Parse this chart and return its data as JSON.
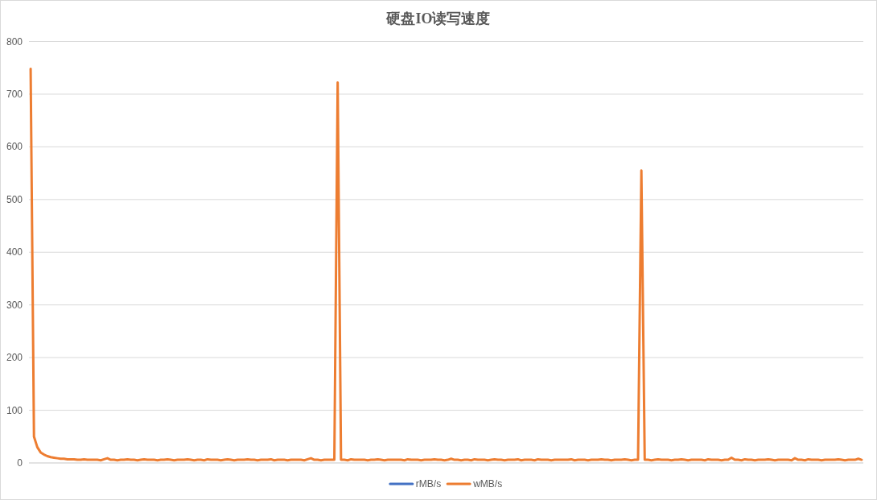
{
  "chart_data": {
    "type": "line",
    "title": "硬盘IO读写速度",
    "categories": [
      null,
      null,
      null,
      null,
      null,
      null,
      null,
      null,
      null,
      null,
      null,
      null,
      null,
      null,
      null,
      null,
      null,
      null,
      null,
      null,
      null,
      null,
      null,
      null,
      null,
      null,
      null,
      null,
      null,
      null,
      null,
      null,
      null,
      null,
      null,
      null,
      null,
      null,
      null,
      null,
      null,
      null,
      null,
      null,
      null,
      null,
      null,
      null,
      null,
      null,
      null,
      null,
      null,
      null,
      null,
      null,
      null,
      null,
      null,
      null,
      null,
      null,
      null,
      null,
      null,
      null,
      null,
      null,
      null,
      null,
      null,
      null,
      null,
      null,
      null,
      null,
      null,
      null,
      null,
      null,
      null,
      null,
      null,
      null,
      null,
      null,
      null,
      null,
      null,
      null,
      null,
      null,
      null,
      null,
      null,
      null,
      null,
      null,
      null,
      null,
      null,
      null,
      null,
      null,
      null,
      null,
      null,
      null,
      null,
      null,
      null,
      null,
      null,
      null,
      null,
      null,
      null,
      null,
      null,
      null,
      null,
      null,
      null,
      null,
      null,
      null,
      null,
      null,
      null,
      null,
      null,
      null,
      null,
      null,
      null,
      null,
      null,
      null,
      null,
      null,
      null,
      null,
      null,
      null,
      null,
      null,
      null,
      null,
      null,
      null,
      null,
      null,
      null,
      null,
      null,
      null,
      null,
      null,
      null,
      null,
      null,
      null,
      null,
      null,
      null,
      null,
      null,
      null,
      null,
      null,
      null,
      null,
      null,
      null,
      null,
      null,
      null,
      null,
      null,
      null,
      null,
      null,
      null,
      null,
      null,
      null,
      null,
      null,
      null,
      null,
      null,
      null,
      null,
      null,
      null,
      null,
      null,
      null,
      null,
      null,
      null,
      null,
      null,
      null,
      null,
      null,
      null,
      null,
      null,
      null,
      null,
      null,
      null,
      null,
      null,
      null,
      null,
      null,
      null,
      null,
      null,
      null,
      null,
      null,
      null,
      null,
      null,
      null,
      null,
      null,
      null,
      null,
      null,
      null,
      null,
      null,
      null,
      null,
      null,
      null,
      null,
      null,
      null,
      null,
      null,
      null,
      null,
      null,
      null,
      null
    ],
    "series": [
      {
        "name": "rMB/s",
        "color": "#4472c4",
        "values": [
          null,
          null,
          null,
          null,
          null,
          null,
          null,
          null,
          null,
          null,
          null,
          null,
          null,
          null,
          null,
          null,
          null,
          null,
          null,
          null,
          null,
          null,
          null,
          null,
          null,
          null,
          null,
          null,
          null,
          null,
          null,
          null,
          null,
          null,
          null,
          null,
          null,
          null,
          null,
          null,
          null,
          null,
          null,
          null,
          null,
          null,
          null,
          null,
          null,
          null,
          null,
          null,
          null,
          null,
          null,
          null,
          null,
          null,
          null,
          null,
          null,
          null,
          null,
          null,
          null,
          null,
          null,
          null,
          null,
          null,
          null,
          null,
          null,
          null,
          null,
          null,
          null,
          null,
          null,
          null,
          null,
          null,
          null,
          null,
          null,
          null,
          null,
          null,
          null,
          null,
          null,
          null,
          null,
          null,
          null,
          null,
          null,
          null,
          null,
          null,
          null,
          null,
          null,
          null,
          null,
          null,
          null,
          null,
          null,
          null,
          null,
          null,
          null,
          null,
          null,
          null,
          null,
          null,
          null,
          null,
          null,
          null,
          null,
          null,
          null,
          null,
          null,
          null,
          null,
          null,
          null,
          null,
          null,
          null,
          null,
          null,
          null,
          null,
          null,
          null,
          null,
          null,
          null,
          null,
          null,
          null,
          null,
          null,
          null,
          null,
          null,
          null,
          null,
          null,
          null,
          null,
          null,
          null,
          null,
          null,
          null,
          null,
          null,
          null,
          null,
          null,
          null,
          null,
          null,
          null,
          null,
          null,
          null,
          null,
          null,
          null,
          null,
          null,
          null,
          null,
          null,
          null,
          null,
          null,
          null,
          null,
          null,
          null,
          null,
          null,
          null,
          null,
          null,
          null,
          null,
          null,
          null,
          null,
          null,
          null,
          null,
          null,
          null,
          null,
          null,
          null,
          null,
          null,
          null,
          null,
          null,
          null,
          null,
          null,
          null,
          null,
          null,
          null,
          null,
          null,
          null,
          null,
          null,
          null,
          null,
          null,
          null,
          null,
          null,
          null,
          null,
          null,
          null,
          null,
          null,
          null,
          null,
          null,
          null,
          null,
          null,
          null,
          null,
          null,
          null,
          null,
          null,
          null,
          null,
          null
        ]
      },
      {
        "name": "wMB/s",
        "color": "#ed7d31",
        "values": [
          748,
          50,
          30,
          20,
          16,
          13,
          11,
          10,
          9,
          8,
          8,
          7,
          7,
          7,
          6,
          6,
          7,
          6,
          6,
          6,
          6,
          5,
          7,
          9,
          6,
          6,
          5,
          6,
          6,
          7,
          6,
          6,
          5,
          6,
          7,
          6,
          6,
          6,
          5,
          6,
          6,
          7,
          6,
          5,
          6,
          6,
          6,
          7,
          6,
          5,
          6,
          6,
          5,
          7,
          6,
          6,
          6,
          5,
          6,
          7,
          6,
          5,
          6,
          6,
          6,
          7,
          6,
          6,
          5,
          6,
          6,
          6,
          7,
          5,
          6,
          6,
          6,
          5,
          6,
          6,
          6,
          6,
          5,
          7,
          9,
          6,
          6,
          5,
          6,
          6,
          6,
          6,
          722,
          6,
          6,
          5,
          7,
          6,
          6,
          6,
          6,
          5,
          6,
          6,
          7,
          6,
          5,
          6,
          6,
          6,
          6,
          6,
          5,
          7,
          6,
          6,
          6,
          5,
          6,
          6,
          6,
          7,
          6,
          6,
          5,
          6,
          8,
          6,
          6,
          5,
          6,
          6,
          5,
          7,
          6,
          6,
          6,
          5,
          6,
          7,
          6,
          6,
          5,
          6,
          6,
          6,
          7,
          5,
          6,
          6,
          6,
          5,
          7,
          6,
          6,
          6,
          5,
          6,
          6,
          6,
          6,
          6,
          7,
          5,
          6,
          6,
          6,
          5,
          6,
          6,
          6,
          7,
          6,
          6,
          5,
          6,
          6,
          6,
          7,
          6,
          5,
          6,
          6,
          555,
          6,
          6,
          5,
          6,
          7,
          6,
          6,
          6,
          5,
          6,
          6,
          7,
          6,
          5,
          6,
          6,
          6,
          6,
          5,
          7,
          6,
          6,
          6,
          5,
          6,
          6,
          10,
          6,
          6,
          5,
          7,
          6,
          6,
          5,
          6,
          6,
          6,
          7,
          6,
          5,
          6,
          6,
          6,
          6,
          5,
          9,
          6,
          6,
          5,
          7,
          6,
          6,
          6,
          5,
          6,
          6,
          6,
          6,
          7,
          6,
          5,
          6,
          6,
          6,
          8,
          6
        ]
      }
    ],
    "ylim": [
      0,
      800
    ],
    "yticks": [
      0,
      100,
      200,
      300,
      400,
      500,
      600,
      700,
      800
    ],
    "grid": "y",
    "legend": "bottom",
    "tick_labels": "y"
  }
}
